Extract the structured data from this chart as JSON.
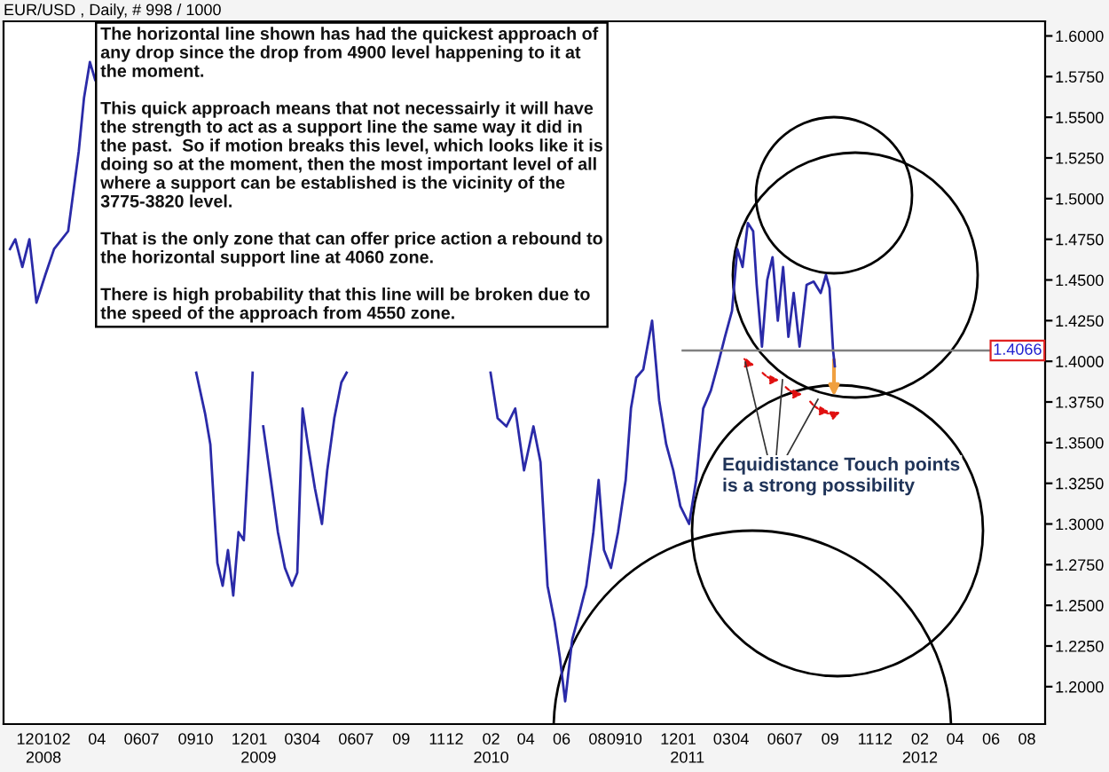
{
  "chart_data": {
    "type": "line",
    "title": "EUR/USD , Daily, # 998 / 1000",
    "x": [
      "2007-11-05",
      "2007-11-14",
      "2007-11-26",
      "2007-12-08",
      "2007-12-20",
      "2008-01-04",
      "2008-01-19",
      "2008-02-12",
      "2008-03-01",
      "2008-03-10",
      "2008-03-20",
      "2008-03-29",
      "2008-06-18",
      "2008-09-17",
      "2008-10-02",
      "2008-10-11",
      "2008-10-23",
      "2008-11-01",
      "2008-11-10",
      "2008-11-19",
      "2008-11-28",
      "2008-12-07",
      "2008-12-16",
      "2008-12-22",
      "2008-12-31",
      "2009-01-09",
      "2009-01-22",
      "2009-02-03",
      "2009-02-15",
      "2009-02-27",
      "2009-03-08",
      "2009-03-17",
      "2009-03-26",
      "2009-04-07",
      "2009-04-19",
      "2009-04-28",
      "2009-05-10",
      "2009-05-22",
      "2009-05-31",
      "2009-09-14",
      "2010-01-31",
      "2010-02-12",
      "2010-02-27",
      "2010-03-14",
      "2010-03-29",
      "2010-04-14",
      "2010-04-26",
      "2010-05-08",
      "2010-05-20",
      "2010-05-29",
      "2010-06-07",
      "2010-06-19",
      "2010-07-01",
      "2010-07-13",
      "2010-07-25",
      "2010-08-03",
      "2010-08-12",
      "2010-08-24",
      "2010-09-05",
      "2010-09-18",
      "2010-09-27",
      "2010-10-06",
      "2010-10-18",
      "2010-11-02",
      "2010-11-14",
      "2010-11-26",
      "2010-12-08",
      "2010-12-20",
      "2011-01-04",
      "2011-01-16",
      "2011-01-28",
      "2011-02-10",
      "2011-02-22",
      "2011-03-06",
      "2011-03-18",
      "2011-03-27",
      "2011-04-05",
      "2011-04-14",
      "2011-04-23",
      "2011-04-29",
      "2011-05-08",
      "2011-05-17",
      "2011-05-26",
      "2011-06-04",
      "2011-06-13",
      "2011-06-22",
      "2011-07-01",
      "2011-07-11",
      "2011-07-23",
      "2011-08-04",
      "2011-08-16",
      "2011-08-25",
      "2011-08-31",
      "2011-09-06",
      "2011-09-09"
    ],
    "series": [
      {
        "color": "#2a2aa8",
        "values": [
          1.469,
          1.475,
          1.458,
          1.475,
          1.436,
          1.453,
          1.469,
          1.48,
          1.529,
          1.562,
          1.584,
          1.573,
          null,
          1.393,
          1.368,
          1.349,
          1.276,
          1.262,
          1.284,
          1.256,
          1.295,
          1.29,
          1.349,
          1.393,
          null,
          1.36,
          1.327,
          1.295,
          1.273,
          1.262,
          1.27,
          1.371,
          1.349,
          1.322,
          1.3,
          1.333,
          1.365,
          1.387,
          1.393,
          null,
          1.393,
          1.365,
          1.36,
          1.371,
          1.333,
          1.36,
          1.338,
          1.262,
          1.24,
          1.218,
          1.191,
          1.229,
          1.245,
          1.262,
          1.295,
          1.327,
          1.284,
          1.273,
          1.295,
          1.327,
          1.371,
          1.39,
          1.395,
          1.425,
          1.376,
          1.349,
          1.333,
          1.311,
          1.3,
          1.327,
          1.371,
          1.382,
          1.398,
          1.415,
          1.431,
          1.469,
          1.458,
          1.485,
          1.48,
          1.447,
          1.409,
          1.45,
          1.464,
          1.425,
          1.458,
          1.415,
          1.442,
          1.409,
          1.447,
          1.449,
          1.442,
          1.453,
          1.445,
          1.407,
          1.397
        ]
      }
    ],
    "xlim": [
      "2007-10-25",
      "2012-09-01"
    ],
    "xticks": [
      {
        "value": "2007-12-01",
        "label": "12"
      },
      {
        "value": "2008-01-01",
        "label": "01\n2008"
      },
      {
        "value": "2008-02-01",
        "label": "02"
      },
      {
        "value": "2008-04-01",
        "label": "04"
      },
      {
        "value": "2008-06-01",
        "label": "06"
      },
      {
        "value": "2008-07-01",
        "label": "07"
      },
      {
        "value": "2008-09-01",
        "label": "09"
      },
      {
        "value": "2008-10-01",
        "label": "10"
      },
      {
        "value": "2008-12-01",
        "label": "12"
      },
      {
        "value": "2009-01-01",
        "label": "01\n2009"
      },
      {
        "value": "2009-03-01",
        "label": "03"
      },
      {
        "value": "2009-04-01",
        "label": "04"
      },
      {
        "value": "2009-06-01",
        "label": "06"
      },
      {
        "value": "2009-07-01",
        "label": "07"
      },
      {
        "value": "2009-09-01",
        "label": "09"
      },
      {
        "value": "2009-11-01",
        "label": "11"
      },
      {
        "value": "2009-12-01",
        "label": "12"
      },
      {
        "value": "2010-02-01",
        "label": "02\n2010"
      },
      {
        "value": "2010-04-01",
        "label": "04"
      },
      {
        "value": "2010-06-01",
        "label": "06"
      },
      {
        "value": "2010-08-01",
        "label": "08"
      },
      {
        "value": "2010-09-01",
        "label": "09"
      },
      {
        "value": "2010-10-01",
        "label": "10"
      },
      {
        "value": "2010-12-01",
        "label": "12"
      },
      {
        "value": "2011-01-01",
        "label": "01\n2011"
      },
      {
        "value": "2011-03-01",
        "label": "03"
      },
      {
        "value": "2011-04-01",
        "label": "04"
      },
      {
        "value": "2011-06-01",
        "label": "06"
      },
      {
        "value": "2011-07-01",
        "label": "07"
      },
      {
        "value": "2011-09-01",
        "label": "09"
      },
      {
        "value": "2011-11-01",
        "label": "11"
      },
      {
        "value": "2011-12-01",
        "label": "12"
      },
      {
        "value": "2012-02-01",
        "label": "02\n2012"
      },
      {
        "value": "2012-04-01",
        "label": "04"
      },
      {
        "value": "2012-06-01",
        "label": "06"
      },
      {
        "value": "2012-08-01",
        "label": "08"
      }
    ],
    "ylim": [
      1.177,
      1.609
    ],
    "yticks": [
      {
        "value": 1.2,
        "label": "1.2000"
      },
      {
        "value": 1.225,
        "label": "1.2250"
      },
      {
        "value": 1.25,
        "label": "1.2500"
      },
      {
        "value": 1.275,
        "label": "1.2750"
      },
      {
        "value": 1.3,
        "label": "1.3000"
      },
      {
        "value": 1.325,
        "label": "1.3250"
      },
      {
        "value": 1.35,
        "label": "1.3500"
      },
      {
        "value": 1.375,
        "label": "1.3750"
      },
      {
        "value": 1.4,
        "label": "1.4000"
      },
      {
        "value": 1.425,
        "label": "1.4250"
      },
      {
        "value": 1.45,
        "label": "1.4500"
      },
      {
        "value": 1.475,
        "label": "1.4750"
      },
      {
        "value": 1.5,
        "label": "1.5000"
      },
      {
        "value": 1.525,
        "label": "1.5250"
      },
      {
        "value": 1.55,
        "label": "1.5500"
      },
      {
        "value": 1.575,
        "label": "1.5750"
      },
      {
        "value": 1.6,
        "label": "1.6000"
      }
    ],
    "ref_lines": [
      {
        "axis": "y",
        "value": 1.4066,
        "label": "1.4066",
        "color": "#808080"
      }
    ],
    "annotations": [
      "The horizontal line shown has had the quickest approach of\nany drop since the drop from 4900 level happening to it at\nthe moment.\n\nThis quick approach means that not necessairly it will have\nthe strength to act as a support line the same way it did in\nthe past.  So if motion breaks this level, which looks like it is\ndoing so at the moment, then the most important level of all\nwhere a support can be established is the vicinity of the\n3775-3820 level.\n\nThat is the only zone that can offer price action a rebound to\nthe horizontal support line at 4060 zone.\n\nThere is high probability that this line will be broken due to\nthe speed of the approach from 4550 zone.",
      "Equidistance Touch points\nis a strong possibility"
    ],
    "grid": false,
    "legend": false
  }
}
